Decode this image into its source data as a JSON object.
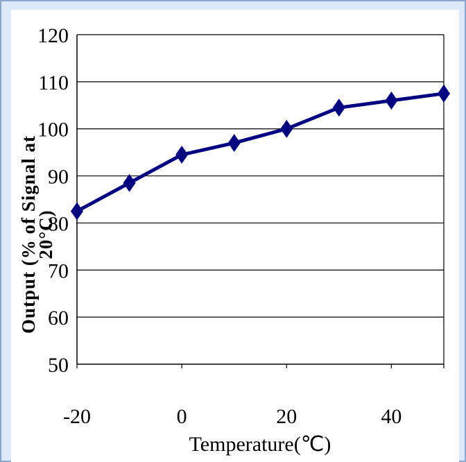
{
  "chart_data": {
    "type": "line",
    "x": [
      -20,
      -10,
      0,
      10,
      20,
      30,
      40,
      50
    ],
    "series": [
      {
        "values": [
          82.5,
          88.5,
          94.5,
          97,
          100,
          104.5,
          106,
          107.5
        ]
      }
    ],
    "xlabel": "Temperature(℃)",
    "ylabel_line1": "Output (% of Signal at",
    "ylabel_line2": "20°C)",
    "x_ticks": [
      -20,
      0,
      20,
      40
    ],
    "y_ticks": [
      50,
      60,
      70,
      80,
      90,
      100,
      110,
      120
    ],
    "xlim": [
      -20,
      50
    ],
    "ylim": [
      50,
      120
    ],
    "grid": "horizontal",
    "colors": {
      "line": "#000080",
      "marker": "#000080",
      "background": "#dbe9fb",
      "plot_bg": "#ffffff"
    },
    "marker": "diamond"
  }
}
